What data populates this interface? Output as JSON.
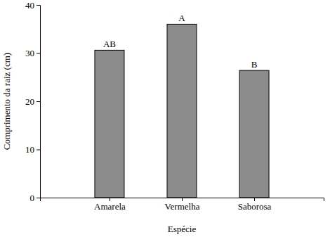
{
  "chart_data": {
    "type": "bar",
    "x_label": "Espécie",
    "y_label": "Comprimento da raiz (cm)",
    "categories": [
      "Amarela",
      "Vermelha",
      "Saborosa"
    ],
    "values": [
      30.6,
      36.0,
      26.4
    ],
    "annotations": [
      "AB",
      "A",
      "B"
    ],
    "color": "#8c8c8c",
    "ylim": [
      0,
      40
    ],
    "yticks": [
      0,
      10,
      20,
      30,
      40
    ],
    "grid": false
  }
}
